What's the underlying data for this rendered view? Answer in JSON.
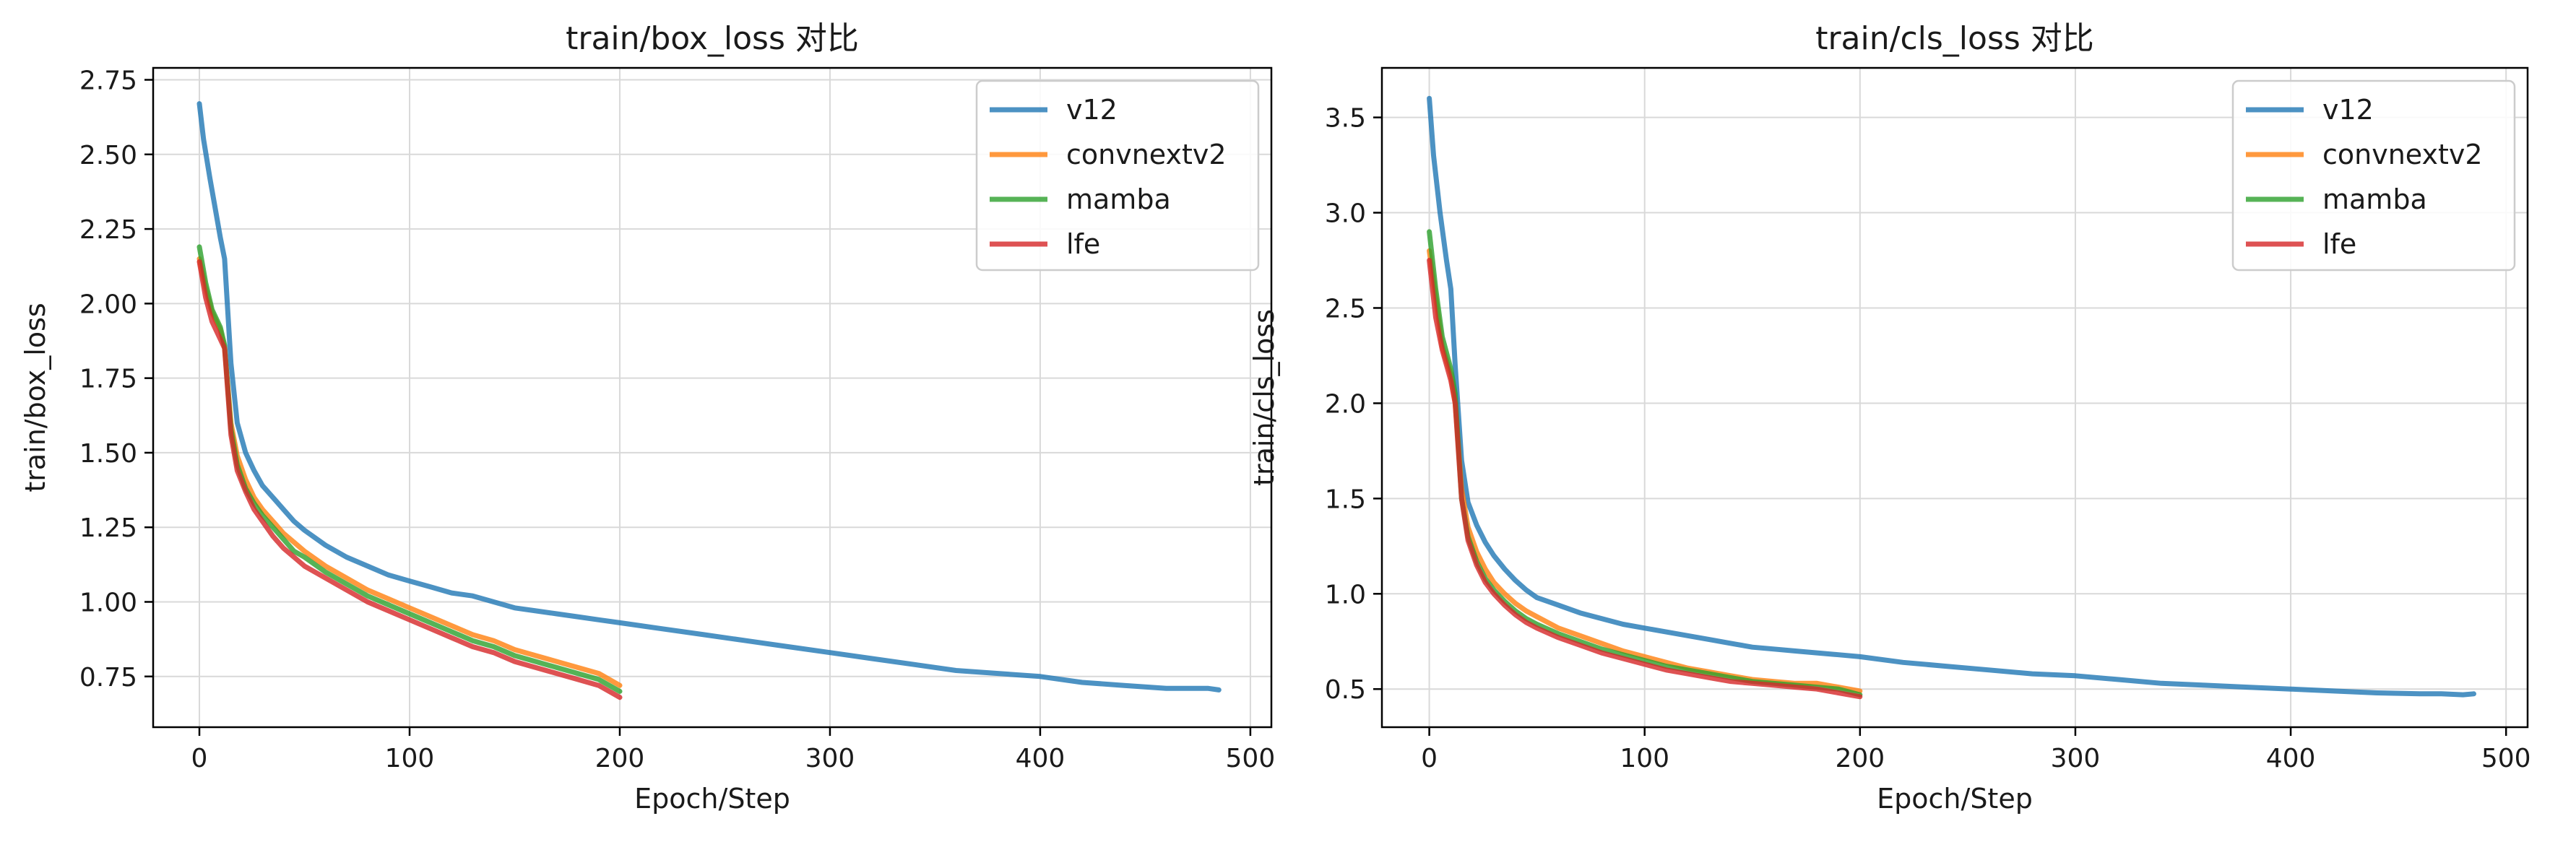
{
  "colors": {
    "v12": "#1f77b4",
    "convnextv2": "#ff7f0e",
    "mamba": "#2ca02c",
    "lfe": "#d62728"
  },
  "chart_data": [
    {
      "type": "line",
      "title": "train/box_loss 对比",
      "xlabel": "Epoch/Step",
      "ylabel": "train/box_loss",
      "xlim": [
        -22,
        510
      ],
      "ylim": [
        0.58,
        2.79
      ],
      "xticks": [
        0,
        100,
        200,
        300,
        400,
        500
      ],
      "yticks": [
        0.75,
        1.0,
        1.25,
        1.5,
        1.75,
        2.0,
        2.25,
        2.5,
        2.75
      ],
      "ytick_decimals": 2,
      "grid": true,
      "legend_position": "top-right",
      "series": [
        {
          "name": "v12",
          "x": [
            0,
            2,
            5,
            8,
            10,
            12,
            15,
            18,
            22,
            26,
            30,
            35,
            40,
            45,
            50,
            60,
            70,
            80,
            90,
            100,
            110,
            120,
            130,
            140,
            150,
            160,
            170,
            180,
            190,
            200,
            220,
            240,
            260,
            280,
            300,
            320,
            340,
            360,
            380,
            400,
            420,
            440,
            460,
            470,
            480,
            485
          ],
          "y": [
            2.67,
            2.55,
            2.42,
            2.3,
            2.22,
            2.15,
            1.8,
            1.6,
            1.5,
            1.44,
            1.39,
            1.35,
            1.31,
            1.27,
            1.24,
            1.19,
            1.15,
            1.12,
            1.09,
            1.07,
            1.05,
            1.03,
            1.02,
            1.0,
            0.98,
            0.97,
            0.96,
            0.95,
            0.94,
            0.93,
            0.91,
            0.89,
            0.87,
            0.85,
            0.83,
            0.81,
            0.79,
            0.77,
            0.76,
            0.75,
            0.73,
            0.72,
            0.71,
            0.71,
            0.71,
            0.705
          ]
        },
        {
          "name": "convnextv2",
          "x": [
            0,
            3,
            6,
            10,
            12,
            15,
            18,
            22,
            26,
            30,
            35,
            40,
            45,
            50,
            60,
            70,
            80,
            90,
            100,
            110,
            120,
            130,
            140,
            150,
            160,
            170,
            180,
            190,
            200
          ],
          "y": [
            2.15,
            2.05,
            1.97,
            1.91,
            1.85,
            1.6,
            1.49,
            1.41,
            1.35,
            1.31,
            1.27,
            1.23,
            1.2,
            1.17,
            1.12,
            1.08,
            1.04,
            1.01,
            0.98,
            0.95,
            0.92,
            0.89,
            0.87,
            0.84,
            0.82,
            0.8,
            0.78,
            0.76,
            0.72
          ]
        },
        {
          "name": "mamba",
          "x": [
            0,
            3,
            6,
            10,
            12,
            15,
            18,
            22,
            26,
            30,
            35,
            40,
            45,
            50,
            60,
            70,
            80,
            90,
            100,
            110,
            120,
            130,
            140,
            150,
            160,
            170,
            180,
            190,
            200
          ],
          "y": [
            2.19,
            2.07,
            1.98,
            1.92,
            1.86,
            1.58,
            1.46,
            1.38,
            1.33,
            1.29,
            1.25,
            1.21,
            1.17,
            1.15,
            1.1,
            1.06,
            1.02,
            0.99,
            0.96,
            0.93,
            0.9,
            0.87,
            0.85,
            0.82,
            0.8,
            0.78,
            0.76,
            0.74,
            0.7
          ]
        },
        {
          "name": "lfe",
          "x": [
            0,
            3,
            6,
            10,
            12,
            15,
            18,
            22,
            26,
            30,
            35,
            40,
            45,
            50,
            60,
            70,
            80,
            90,
            100,
            110,
            120,
            130,
            140,
            150,
            160,
            170,
            180,
            190,
            200
          ],
          "y": [
            2.14,
            2.02,
            1.94,
            1.88,
            1.85,
            1.56,
            1.44,
            1.37,
            1.31,
            1.27,
            1.22,
            1.18,
            1.15,
            1.12,
            1.08,
            1.04,
            1.0,
            0.97,
            0.94,
            0.91,
            0.88,
            0.85,
            0.83,
            0.8,
            0.78,
            0.76,
            0.74,
            0.72,
            0.68
          ]
        }
      ]
    },
    {
      "type": "line",
      "title": "train/cls_loss 对比",
      "xlabel": "Epoch/Step",
      "ylabel": "train/cls_loss",
      "xlim": [
        -22,
        510
      ],
      "ylim": [
        0.3,
        3.76
      ],
      "xticks": [
        0,
        100,
        200,
        300,
        400,
        500
      ],
      "yticks": [
        0.5,
        1.0,
        1.5,
        2.0,
        2.5,
        3.0,
        3.5
      ],
      "ytick_decimals": 1,
      "grid": true,
      "legend_position": "top-right",
      "series": [
        {
          "name": "v12",
          "x": [
            0,
            2,
            5,
            8,
            10,
            12,
            15,
            18,
            22,
            26,
            30,
            35,
            40,
            45,
            50,
            60,
            70,
            80,
            90,
            100,
            110,
            120,
            130,
            140,
            150,
            160,
            170,
            180,
            190,
            200,
            220,
            240,
            260,
            280,
            300,
            320,
            340,
            360,
            380,
            400,
            420,
            440,
            460,
            470,
            480,
            485
          ],
          "y": [
            3.6,
            3.3,
            3.0,
            2.75,
            2.6,
            2.2,
            1.7,
            1.48,
            1.36,
            1.27,
            1.2,
            1.13,
            1.07,
            1.02,
            0.98,
            0.94,
            0.9,
            0.87,
            0.84,
            0.82,
            0.8,
            0.78,
            0.76,
            0.74,
            0.72,
            0.71,
            0.7,
            0.69,
            0.68,
            0.67,
            0.64,
            0.62,
            0.6,
            0.58,
            0.57,
            0.55,
            0.53,
            0.52,
            0.51,
            0.5,
            0.49,
            0.48,
            0.475,
            0.475,
            0.47,
            0.475
          ]
        },
        {
          "name": "convnextv2",
          "x": [
            0,
            3,
            6,
            10,
            12,
            15,
            18,
            22,
            26,
            30,
            35,
            40,
            45,
            50,
            60,
            70,
            80,
            90,
            100,
            110,
            120,
            130,
            140,
            150,
            160,
            170,
            180,
            190,
            200
          ],
          "y": [
            2.8,
            2.55,
            2.3,
            2.15,
            2.0,
            1.55,
            1.35,
            1.22,
            1.13,
            1.06,
            1.0,
            0.95,
            0.91,
            0.88,
            0.82,
            0.78,
            0.74,
            0.7,
            0.67,
            0.64,
            0.61,
            0.59,
            0.57,
            0.55,
            0.54,
            0.53,
            0.53,
            0.51,
            0.49
          ]
        },
        {
          "name": "mamba",
          "x": [
            0,
            3,
            6,
            10,
            12,
            15,
            18,
            22,
            26,
            30,
            35,
            40,
            45,
            50,
            60,
            70,
            80,
            90,
            100,
            110,
            120,
            130,
            140,
            150,
            160,
            170,
            180,
            190,
            200
          ],
          "y": [
            2.9,
            2.6,
            2.35,
            2.18,
            2.05,
            1.5,
            1.3,
            1.17,
            1.08,
            1.02,
            0.96,
            0.91,
            0.87,
            0.84,
            0.79,
            0.75,
            0.71,
            0.68,
            0.65,
            0.62,
            0.6,
            0.58,
            0.56,
            0.54,
            0.53,
            0.52,
            0.51,
            0.5,
            0.47
          ]
        },
        {
          "name": "lfe",
          "x": [
            0,
            3,
            6,
            10,
            12,
            15,
            18,
            22,
            26,
            30,
            35,
            40,
            45,
            50,
            60,
            70,
            80,
            90,
            100,
            110,
            120,
            130,
            140,
            150,
            160,
            170,
            180,
            190,
            200
          ],
          "y": [
            2.75,
            2.45,
            2.28,
            2.12,
            2.0,
            1.5,
            1.28,
            1.15,
            1.06,
            1.0,
            0.94,
            0.89,
            0.85,
            0.82,
            0.77,
            0.73,
            0.69,
            0.66,
            0.63,
            0.6,
            0.58,
            0.56,
            0.54,
            0.53,
            0.52,
            0.51,
            0.5,
            0.48,
            0.46
          ]
        }
      ]
    }
  ]
}
